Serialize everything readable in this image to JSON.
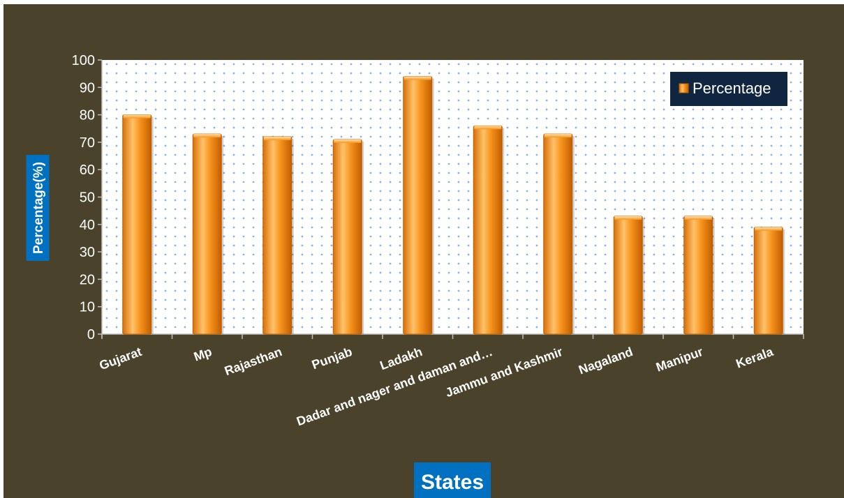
{
  "chart_data": {
    "type": "bar",
    "categories": [
      "Gujarat",
      "Mp",
      "Rajasthan",
      "Punjab",
      "Ladakh",
      "Dadar and nager and daman and…",
      "Jammu and Kashmir",
      "Nagaland",
      "Manipur",
      "Kerala"
    ],
    "series": [
      {
        "name": "Percentage",
        "values": [
          80,
          73,
          72,
          71,
          94,
          76,
          73,
          43,
          43,
          39
        ]
      }
    ],
    "xlabel": "States",
    "ylabel": "Percentage(%)",
    "ylim": [
      0,
      100
    ],
    "yticks": [
      0,
      10,
      20,
      30,
      40,
      50,
      60,
      70,
      80,
      90,
      100
    ],
    "grid": "dotted",
    "legend_position": "top-right"
  },
  "colors": {
    "background": "#4a422b",
    "plot_area": "#ffffff",
    "grid_dots": "#8eb4e3",
    "bar_light": "#ffc26a",
    "bar_mid": "#f7941d",
    "bar_dark": "#c25e00",
    "label_box": "#0070c0",
    "legend_box": "#10253f"
  }
}
